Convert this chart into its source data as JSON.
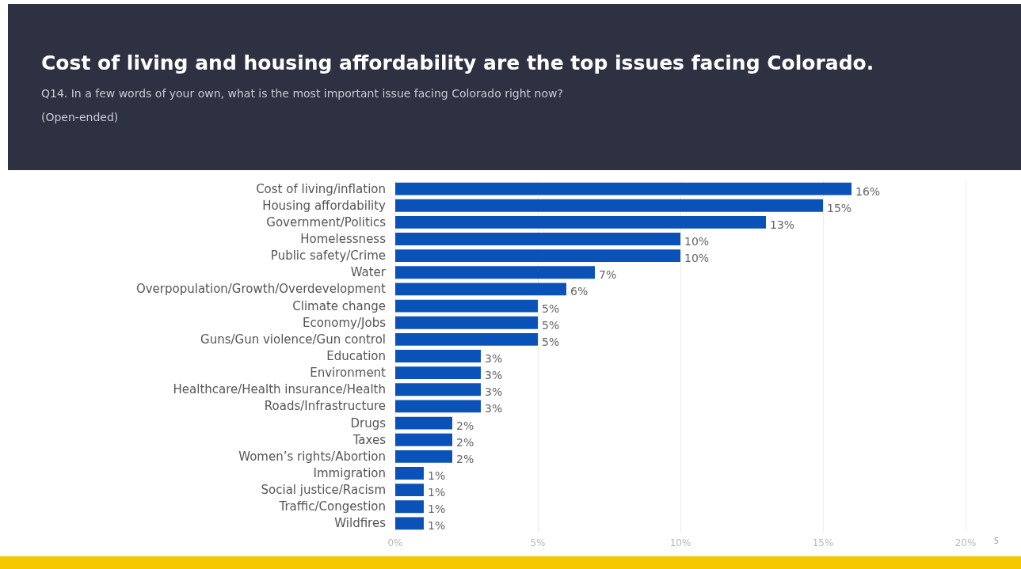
{
  "chart_data": {
    "type": "bar",
    "orientation": "horizontal",
    "title": "Cost of living and housing affordability are the top issues facing Colorado.",
    "subtitle": "Q14. In a few words of your own, what is the most important issue facing Colorado right now?\n(Open-ended)",
    "categories": [
      "Cost of living/inflation",
      "Housing affordability",
      "Government/Politics",
      "Homelessness",
      "Public safety/Crime",
      "Water",
      "Overpopulation/Growth/Overdevelopment",
      "Climate change",
      "Economy/Jobs",
      "Guns/Gun violence/Gun control",
      "Education",
      "Environment",
      "Healthcare/Health insurance/Health",
      "Roads/Infrastructure",
      "Drugs",
      "Taxes",
      "Women’s rights/Abortion",
      "Immigration",
      "Social justice/Racism",
      "Traffic/Congestion",
      "Wildfires"
    ],
    "values": [
      16,
      15,
      13,
      10,
      10,
      7,
      6,
      5,
      5,
      5,
      3,
      3,
      3,
      3,
      2,
      2,
      2,
      1,
      1,
      1,
      1
    ],
    "value_labels": [
      "16%",
      "15%",
      "13%",
      "10%",
      "10%",
      "7%",
      "6%",
      "5%",
      "5%",
      "5%",
      "3%",
      "3%",
      "3%",
      "3%",
      "2%",
      "2%",
      "2%",
      "1%",
      "1%",
      "1%",
      "1%"
    ],
    "color": "#0b52b8",
    "xlim": [
      0,
      20
    ],
    "xticks": [
      {
        "value": 0,
        "label": "0%"
      },
      {
        "value": 5,
        "label": "5%"
      },
      {
        "value": 10,
        "label": "10%"
      },
      {
        "value": 15,
        "label": "15%"
      },
      {
        "value": 20,
        "label": "20%"
      }
    ],
    "grid": "x",
    "annotations": [
      "5"
    ]
  }
}
